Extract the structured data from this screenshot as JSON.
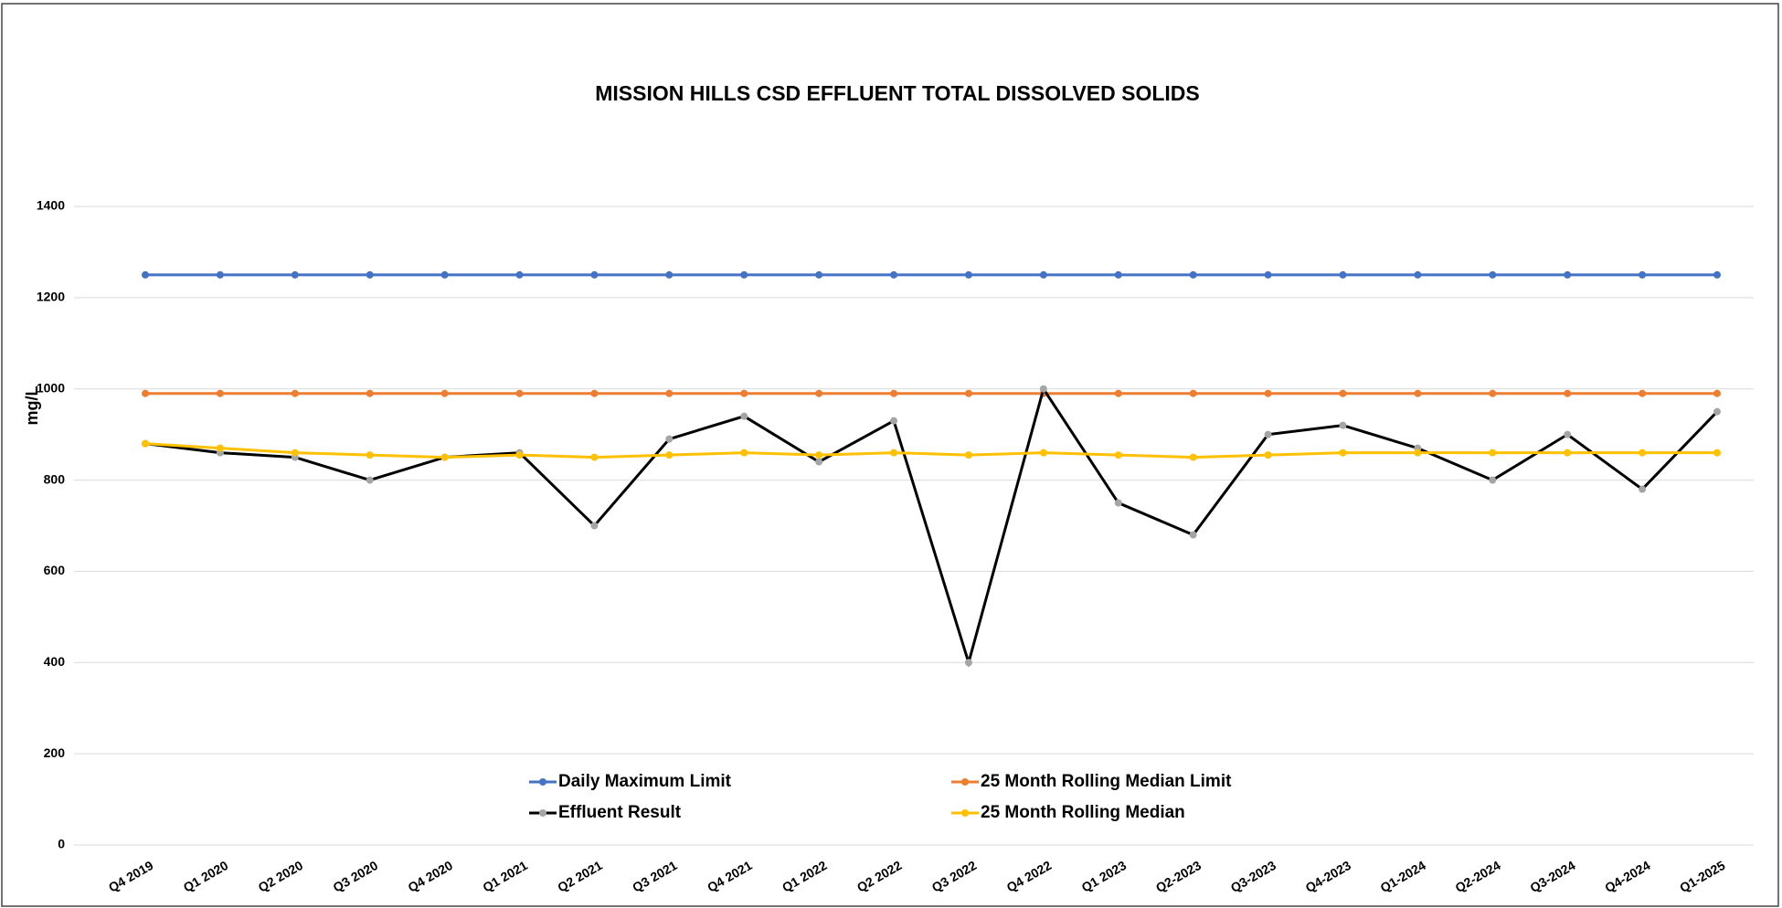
{
  "chart_data": {
    "type": "line",
    "title": "MISSION HILLS CSD EFFLUENT TOTAL DISSOLVED SOLIDS",
    "y_label": "mg/L",
    "categories": [
      "Q4 2019",
      "Q1 2020",
      "Q2 2020",
      "Q3 2020",
      "Q4 2020",
      "Q1 2021",
      "Q2 2021",
      "Q3 2021",
      "Q4 2021",
      "Q1 2022",
      "Q2 2022",
      "Q3 2022",
      "Q4 2022",
      "Q1 2023",
      "Q2-2023",
      "Q3-2023",
      "Q4-2023",
      "Q1-2024",
      "Q2-2024",
      "Q3-2024",
      "Q4-2024",
      "Q1-2025"
    ],
    "series": [
      {
        "name": "Daily Maximum Limit",
        "color": "#4472c4",
        "marker_color": "#4472c4",
        "values": [
          1250,
          1250,
          1250,
          1250,
          1250,
          1250,
          1250,
          1250,
          1250,
          1250,
          1250,
          1250,
          1250,
          1250,
          1250,
          1250,
          1250,
          1250,
          1250,
          1250,
          1250,
          1250
        ]
      },
      {
        "name": "25 Month Rolling Median Limit",
        "color": "#ed7d31",
        "marker_color": "#ed7d31",
        "values": [
          990,
          990,
          990,
          990,
          990,
          990,
          990,
          990,
          990,
          990,
          990,
          990,
          990,
          990,
          990,
          990,
          990,
          990,
          990,
          990,
          990,
          990
        ]
      },
      {
        "name": "Effluent Result",
        "color": "#000000",
        "marker_color": "#a5a5a5",
        "values": [
          880,
          860,
          850,
          800,
          850,
          860,
          700,
          890,
          940,
          840,
          930,
          400,
          1000,
          750,
          680,
          900,
          920,
          870,
          800,
          900,
          780,
          950
        ]
      },
      {
        "name": "25 Month Rolling Median",
        "color": "#ffc000",
        "marker_color": "#ffc000",
        "values": [
          880,
          870,
          860,
          855,
          850,
          855,
          850,
          855,
          860,
          855,
          860,
          855,
          860,
          855,
          850,
          855,
          860,
          860,
          860,
          860,
          860,
          860
        ]
      }
    ],
    "ylim": [
      0,
      1400
    ],
    "yticks": [
      0,
      200,
      400,
      600,
      800,
      1000,
      1200,
      1400
    ],
    "grid": true,
    "legend": "bottom"
  }
}
